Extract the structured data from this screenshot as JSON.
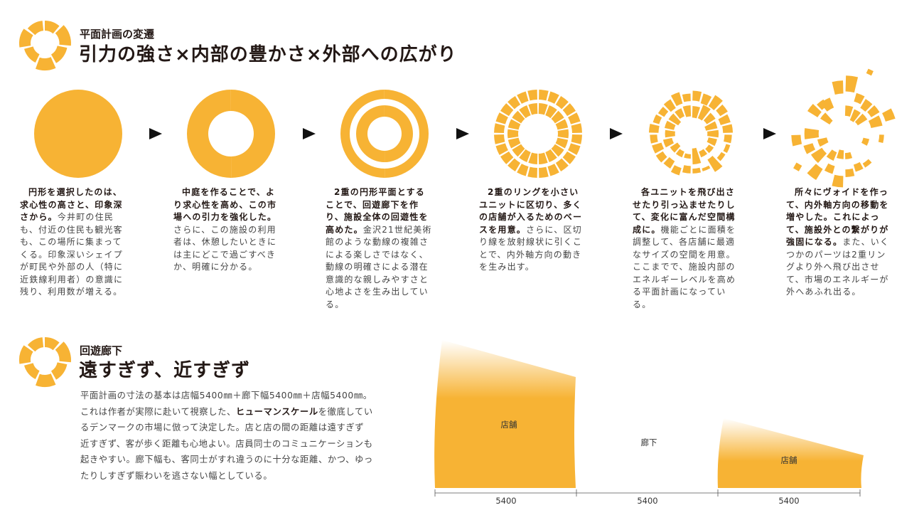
{
  "section1": {
    "label": "平面計画の変遷",
    "title": "引力の強さ×内部の豊かさ×外部への広がり",
    "steps": [
      {
        "bold": "円形を選択したのは、求心性の高さと、印象深さから。",
        "text": "今井町の住民も、付近の住民も観光客も、この場所に集まってくる。印象深いシェイプが町民や外部の人（特に近鉄線利用者）の意識に残り、利用数が増える。"
      },
      {
        "bold": "中庭を作ることで、より求心性を高め、この市場への引力を強化した。",
        "text": "さらに、この施設の利用者は、休憩したいときには主にどこで過ごすべきか、明確に分かる。"
      },
      {
        "bold": "2重の円形平面とすることで、回遊廊下を作り、施設全体の回遊性を高めた。",
        "text": "金沢21世紀美術館のような動線の複雑さによる楽しさではなく、動線の明確さによる潜在意識的な親しみやすさと心地よさを生み出している。"
      },
      {
        "bold": "2重のリングを小さいユニットに区切り、多くの店舗が入るためのベースを用意。",
        "text": "さらに、区切り線を放射線状に引くことで、内外軸方向の動きを生み出す。"
      },
      {
        "bold": "各ユニットを飛び出させたり引っ込ませたりして、変化に富んだ空間構成に。",
        "text": "機能ごとに面積を調整して、各店舗に最適なサイズの空間を用意。ここまでで、施設内部のエネルギーレベルを高める平面計画になっている。"
      },
      {
        "bold": "所々にヴォイドを作って、内外軸方向の移動を増やした。これによって、施設外との繋がりが強固になる。",
        "text": "また、いくつかのパーツは2重リングより外へ飛び出させて、市場のエネルギーが外へあふれ出る。"
      }
    ]
  },
  "section2": {
    "label": "回遊廊下",
    "title": "遠すぎず、近すぎず",
    "body": {
      "before": "平面計画の寸法の基本は店幅5400㎜＋廊下幅5400㎜＋店幅5400㎜。これは作者が実際に赴いて視察した、",
      "emphasis": "ヒューマンスケール",
      "after": "を徹底しているデンマークの市場に倣って決定した。店と店の間の距離は遠すぎず近すぎず、客が歩く距離も心地よい。店員同士のコミュニケーションも起きやすい。廊下幅も、客同士がすれ違うのに十分な距離、かつ、ゆったりしすぎず賑わいを逃さない幅としている。"
    },
    "diagram": {
      "labels": [
        "店舗",
        "廊下",
        "店舗"
      ],
      "dimensions": [
        "5400",
        "5400",
        "5400"
      ]
    }
  }
}
